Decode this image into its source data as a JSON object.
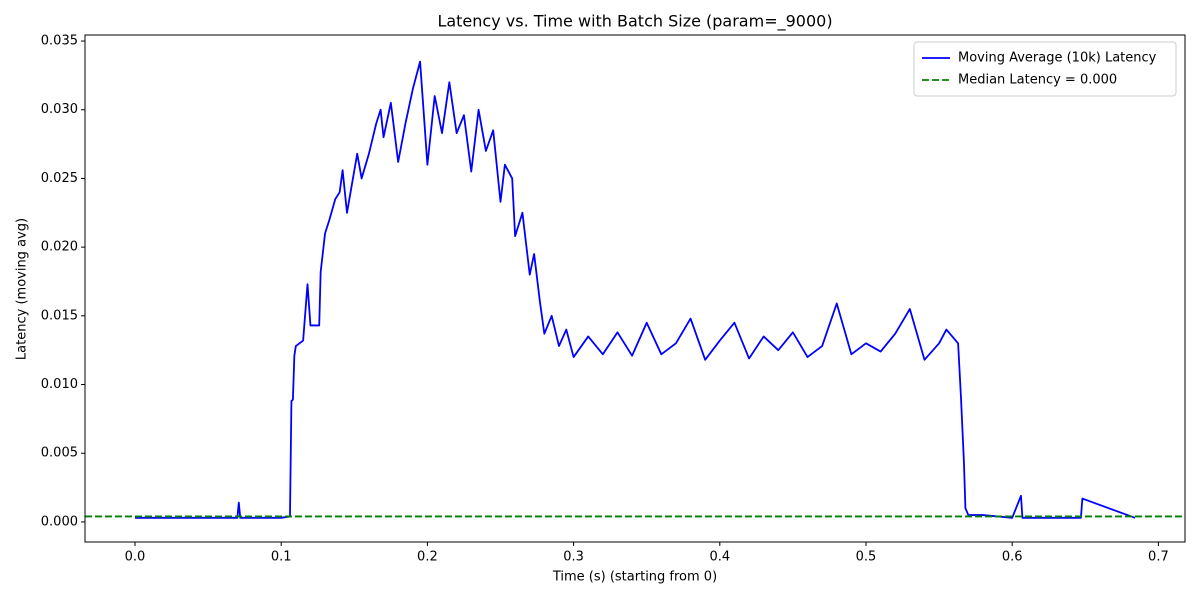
{
  "chart_data": {
    "type": "line",
    "title": "Latency vs. Time with Batch Size (param=_9000)",
    "x_label": "Time (s) (starting from 0)",
    "y_label": "Latency (moving avg)",
    "x": [
      0,
      0.02,
      0.05,
      0.07,
      0.071,
      0.072,
      0.1,
      0.106,
      0.107,
      0.108,
      0.109,
      0.11,
      0.115,
      0.118,
      0.12,
      0.126,
      0.127,
      0.13,
      0.133,
      0.137,
      0.14,
      0.142,
      0.145,
      0.152,
      0.155,
      0.16,
      0.165,
      0.168,
      0.17,
      0.175,
      0.18,
      0.185,
      0.19,
      0.195,
      0.2,
      0.205,
      0.21,
      0.215,
      0.22,
      0.225,
      0.23,
      0.235,
      0.24,
      0.245,
      0.25,
      0.253,
      0.258,
      0.26,
      0.265,
      0.27,
      0.273,
      0.277,
      0.28,
      0.285,
      0.29,
      0.295,
      0.3,
      0.31,
      0.32,
      0.33,
      0.34,
      0.35,
      0.36,
      0.37,
      0.38,
      0.39,
      0.4,
      0.41,
      0.42,
      0.43,
      0.44,
      0.45,
      0.46,
      0.47,
      0.48,
      0.49,
      0.5,
      0.51,
      0.52,
      0.53,
      0.54,
      0.55,
      0.555,
      0.563,
      0.565,
      0.567,
      0.568,
      0.57,
      0.58,
      0.6,
      0.606,
      0.607,
      0.647,
      0.648,
      0.684
    ],
    "series": [
      {
        "name": "Moving Average (10k) Latency",
        "color": "#0000ff",
        "values": [
          0.0003,
          0.0003,
          0.0003,
          0.0003,
          0.0014,
          0.0003,
          0.0003,
          0.0004,
          0.0088,
          0.0089,
          0.0121,
          0.0128,
          0.0132,
          0.0173,
          0.0143,
          0.0143,
          0.0182,
          0.021,
          0.022,
          0.0235,
          0.024,
          0.0256,
          0.0225,
          0.0268,
          0.025,
          0.0268,
          0.029,
          0.03,
          0.028,
          0.0305,
          0.0262,
          0.029,
          0.0315,
          0.0335,
          0.026,
          0.031,
          0.0283,
          0.032,
          0.0283,
          0.0296,
          0.0255,
          0.03,
          0.027,
          0.0285,
          0.0233,
          0.026,
          0.025,
          0.0208,
          0.0225,
          0.018,
          0.0195,
          0.016,
          0.0137,
          0.015,
          0.0128,
          0.014,
          0.012,
          0.0135,
          0.0122,
          0.0138,
          0.0121,
          0.0145,
          0.0122,
          0.013,
          0.0148,
          0.0118,
          0.0132,
          0.0145,
          0.0119,
          0.0135,
          0.0125,
          0.0138,
          0.012,
          0.0128,
          0.0159,
          0.0122,
          0.013,
          0.0124,
          0.0137,
          0.0155,
          0.0118,
          0.013,
          0.014,
          0.013,
          0.009,
          0.0043,
          0.001,
          0.0005,
          0.0005,
          0.0003,
          0.0019,
          0.0003,
          0.0003,
          0.0017,
          0.0003
        ]
      }
    ],
    "hline": {
      "name": "Median Latency = 0.000",
      "color": "#008000",
      "value": 0.0004,
      "style": "dashed"
    },
    "xlim": [
      -0.0342,
      0.7182
    ],
    "ylim": [
      -0.00146,
      0.03544
    ],
    "xticks": [
      {
        "value": 0,
        "label": "0.0"
      },
      {
        "value": 0.1,
        "label": "0.1"
      },
      {
        "value": 0.2,
        "label": "0.2"
      },
      {
        "value": 0.3,
        "label": "0.3"
      },
      {
        "value": 0.4,
        "label": "0.4"
      },
      {
        "value": 0.5,
        "label": "0.5"
      },
      {
        "value": 0.6,
        "label": "0.6"
      },
      {
        "value": 0.7,
        "label": "0.7"
      }
    ],
    "yticks": [
      {
        "value": 0,
        "label": "0.000"
      },
      {
        "value": 0.005,
        "label": "0.005"
      },
      {
        "value": 0.01,
        "label": "0.010"
      },
      {
        "value": 0.015,
        "label": "0.015"
      },
      {
        "value": 0.02,
        "label": "0.020"
      },
      {
        "value": 0.025,
        "label": "0.025"
      },
      {
        "value": 0.03,
        "label": "0.030"
      },
      {
        "value": 0.035,
        "label": "0.035"
      }
    ],
    "legend": "upper right",
    "grid": false
  }
}
